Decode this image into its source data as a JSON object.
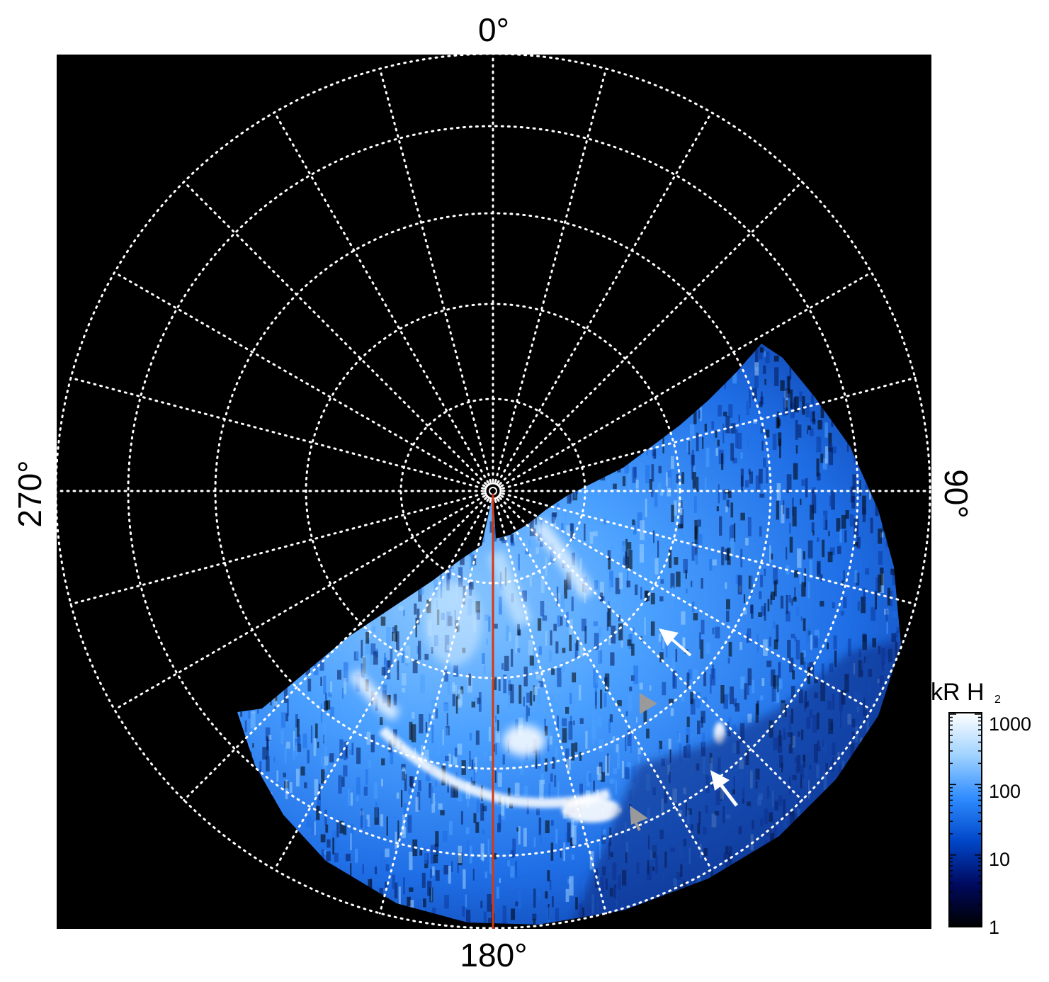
{
  "image": {
    "description_icon": "polar-aurora-image",
    "background_color": "#000000",
    "emission_color": "#2f8cff"
  },
  "labels": {
    "top": "0°",
    "bottom": "180°",
    "left": "270°",
    "right": "90°"
  },
  "colorbar": {
    "title": "kR H",
    "title_subscript": "2",
    "ticks": [
      "1000",
      "100",
      "10",
      "1"
    ],
    "colors": [
      "#000000",
      "#000a60",
      "#0046c8",
      "#2f8cff",
      "#9fd2ff",
      "#ffffff"
    ]
  },
  "colors": {
    "meridian": "#d43a12",
    "grid": "#ffffff",
    "arrow_white": "#ffffff",
    "arrow_gray": "#9a9a9a"
  },
  "arrows": [
    {
      "name": "arrow-upper-right",
      "color": "white"
    },
    {
      "name": "arrow-middle-gray",
      "color": "gray"
    },
    {
      "name": "arrow-lower-right",
      "color": "white"
    },
    {
      "name": "arrow-lower-gray",
      "color": "gray"
    }
  ]
}
